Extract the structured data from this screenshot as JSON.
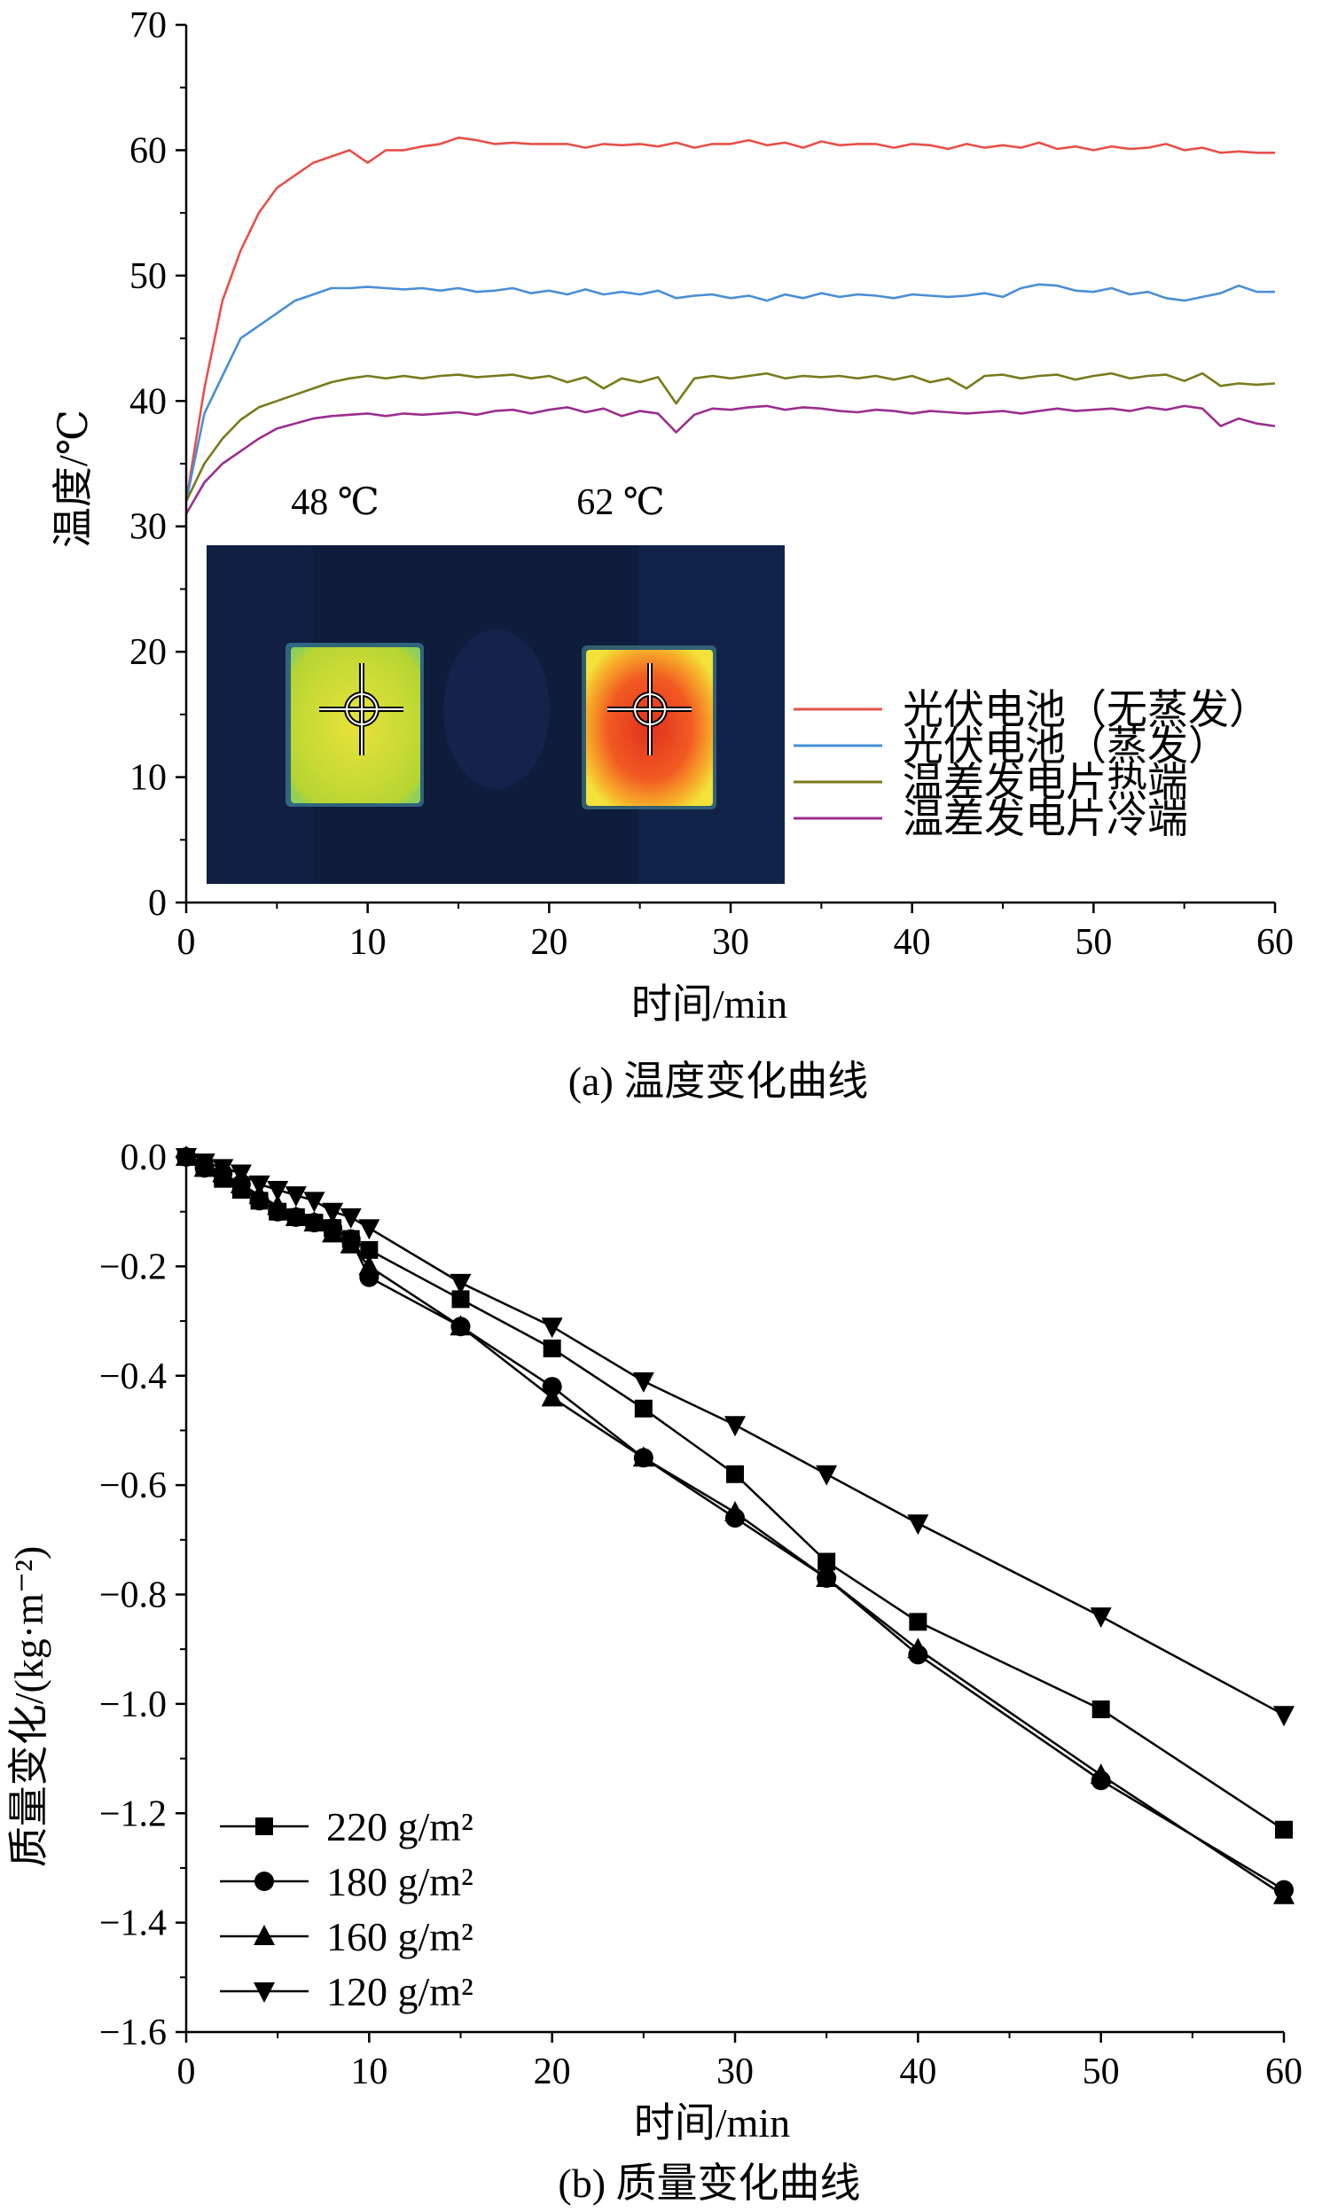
{
  "chart_data": [
    {
      "type": "line",
      "caption": "(a) 温度变化曲线",
      "xlabel": "时间/min",
      "ylabel": "温度/℃",
      "xlim": [
        0,
        60
      ],
      "ylim": [
        0,
        70
      ],
      "xticks": [
        0,
        10,
        20,
        30,
        40,
        50,
        60
      ],
      "yticks": [
        0,
        10,
        20,
        30,
        40,
        50,
        60,
        70
      ],
      "legend_position": "bottom-right",
      "inset": {
        "type": "thermal-image",
        "labels": [
          "48 ℃",
          "62 ℃"
        ]
      },
      "series": [
        {
          "name": "光伏电池（无蒸发）",
          "color": "#e8504a",
          "x": [
            0,
            1,
            2,
            3,
            4,
            5,
            6,
            7,
            8,
            9,
            10,
            11,
            12,
            13,
            14,
            15,
            16,
            17,
            18,
            19,
            20,
            21,
            22,
            23,
            24,
            25,
            26,
            27,
            28,
            29,
            30,
            31,
            32,
            33,
            34,
            35,
            36,
            37,
            38,
            39,
            40,
            41,
            42,
            43,
            44,
            45,
            46,
            47,
            48,
            49,
            50,
            51,
            52,
            53,
            54,
            55,
            56,
            57,
            58,
            59,
            60
          ],
          "y": [
            32,
            41,
            48,
            52,
            55,
            57,
            58,
            59,
            59.5,
            60,
            59,
            60,
            60,
            60.3,
            60.5,
            61,
            60.8,
            60.5,
            60.6,
            60.5,
            60.5,
            60.5,
            60.2,
            60.5,
            60.4,
            60.5,
            60.3,
            60.6,
            60.2,
            60.5,
            60.5,
            60.8,
            60.4,
            60.6,
            60.2,
            60.7,
            60.4,
            60.5,
            60.5,
            60.2,
            60.5,
            60.4,
            60.1,
            60.5,
            60.2,
            60.4,
            60.2,
            60.6,
            60.1,
            60.3,
            60,
            60.3,
            60.1,
            60.2,
            60.5,
            60,
            60.2,
            59.8,
            59.9,
            59.8,
            59.8
          ]
        },
        {
          "name": "光伏电池（蒸发）",
          "color": "#4a8fd6",
          "x": [
            0,
            1,
            2,
            3,
            4,
            5,
            6,
            7,
            8,
            9,
            10,
            11,
            12,
            13,
            14,
            15,
            16,
            17,
            18,
            19,
            20,
            21,
            22,
            23,
            24,
            25,
            26,
            27,
            28,
            29,
            30,
            31,
            32,
            33,
            34,
            35,
            36,
            37,
            38,
            39,
            40,
            41,
            42,
            43,
            44,
            45,
            46,
            47,
            48,
            49,
            50,
            51,
            52,
            53,
            54,
            55,
            56,
            57,
            58,
            59,
            60
          ],
          "y": [
            32,
            39,
            42,
            45,
            46,
            47,
            48,
            48.5,
            49,
            49,
            49.1,
            49,
            48.9,
            49,
            48.8,
            49,
            48.7,
            48.8,
            49,
            48.6,
            48.8,
            48.5,
            48.9,
            48.5,
            48.7,
            48.5,
            48.8,
            48.2,
            48.4,
            48.5,
            48.2,
            48.4,
            48,
            48.5,
            48.2,
            48.6,
            48.3,
            48.5,
            48.4,
            48.2,
            48.5,
            48.4,
            48.3,
            48.4,
            48.6,
            48.3,
            49,
            49.3,
            49.2,
            48.8,
            48.7,
            49,
            48.5,
            48.7,
            48.2,
            48,
            48.3,
            48.6,
            49.2,
            48.7,
            48.7
          ]
        },
        {
          "name": "温差发电片热端",
          "color": "#7a7a1c",
          "x": [
            0,
            1,
            2,
            3,
            4,
            5,
            6,
            7,
            8,
            9,
            10,
            11,
            12,
            13,
            14,
            15,
            16,
            17,
            18,
            19,
            20,
            21,
            22,
            23,
            24,
            25,
            26,
            27,
            28,
            29,
            30,
            31,
            32,
            33,
            34,
            35,
            36,
            37,
            38,
            39,
            40,
            41,
            42,
            43,
            44,
            45,
            46,
            47,
            48,
            49,
            50,
            51,
            52,
            53,
            54,
            55,
            56,
            57,
            58,
            59,
            60
          ],
          "y": [
            32,
            35,
            37,
            38.5,
            39.5,
            40,
            40.5,
            41,
            41.5,
            41.8,
            42,
            41.8,
            42,
            41.8,
            42,
            42.1,
            41.9,
            42,
            42.1,
            41.8,
            42,
            41.5,
            41.9,
            41,
            41.8,
            41.5,
            41.9,
            39.8,
            41.8,
            42,
            41.8,
            42,
            42.2,
            41.8,
            42,
            41.9,
            42,
            41.8,
            42,
            41.7,
            42,
            41.5,
            41.8,
            41,
            42,
            42.1,
            41.8,
            42,
            42.1,
            41.7,
            42,
            42.2,
            41.8,
            42,
            42.1,
            41.6,
            42.2,
            41.2,
            41.4,
            41.3,
            41.4
          ]
        },
        {
          "name": "温差发电片冷端",
          "color": "#9a2e8e",
          "x": [
            0,
            1,
            2,
            3,
            4,
            5,
            6,
            7,
            8,
            9,
            10,
            11,
            12,
            13,
            14,
            15,
            16,
            17,
            18,
            19,
            20,
            21,
            22,
            23,
            24,
            25,
            26,
            27,
            28,
            29,
            30,
            31,
            32,
            33,
            34,
            35,
            36,
            37,
            38,
            39,
            40,
            41,
            42,
            43,
            44,
            45,
            46,
            47,
            48,
            49,
            50,
            51,
            52,
            53,
            54,
            55,
            56,
            57,
            58,
            59,
            60
          ],
          "y": [
            31,
            33.5,
            35,
            36,
            37,
            37.8,
            38.2,
            38.6,
            38.8,
            38.9,
            39,
            38.8,
            39,
            38.9,
            39,
            39.1,
            38.9,
            39.2,
            39.3,
            39,
            39.3,
            39.5,
            39.1,
            39.4,
            38.8,
            39.2,
            39,
            37.5,
            38.9,
            39.4,
            39.3,
            39.5,
            39.6,
            39.3,
            39.5,
            39.4,
            39.2,
            39.1,
            39.3,
            39.2,
            39,
            39.2,
            39.1,
            39,
            39.1,
            39.2,
            39,
            39.2,
            39.4,
            39.2,
            39.3,
            39.4,
            39.2,
            39.5,
            39.3,
            39.6,
            39.4,
            38,
            38.6,
            38.2,
            38
          ]
        }
      ]
    },
    {
      "type": "line",
      "caption": "(b) 质量变化曲线",
      "xlabel": "时间/min",
      "ylabel": "质量变化/(kg·m⁻²)",
      "xlim": [
        0,
        60
      ],
      "ylim": [
        -1.6,
        0.0
      ],
      "xticks": [
        0,
        10,
        20,
        30,
        40,
        50,
        60
      ],
      "yticks": [
        0.0,
        -0.2,
        -0.4,
        -0.6,
        -0.8,
        -1.0,
        -1.2,
        -1.4,
        -1.6
      ],
      "legend_position": "bottom-left",
      "series": [
        {
          "name": "220 g/m²",
          "marker": "square",
          "x": [
            0,
            1,
            2,
            3,
            4,
            5,
            6,
            7,
            8,
            9,
            10,
            15,
            20,
            25,
            30,
            35,
            40,
            50,
            60
          ],
          "y": [
            0,
            -0.02,
            -0.04,
            -0.06,
            -0.08,
            -0.1,
            -0.11,
            -0.12,
            -0.13,
            -0.15,
            -0.17,
            -0.26,
            -0.35,
            -0.46,
            -0.58,
            -0.74,
            -0.85,
            -1.01,
            -1.23
          ]
        },
        {
          "name": "180 g/m²",
          "marker": "circle",
          "x": [
            0,
            1,
            2,
            3,
            4,
            5,
            6,
            7,
            8,
            9,
            10,
            15,
            20,
            25,
            30,
            35,
            40,
            50,
            60
          ],
          "y": [
            0,
            -0.02,
            -0.03,
            -0.05,
            -0.08,
            -0.1,
            -0.11,
            -0.12,
            -0.13,
            -0.15,
            -0.22,
            -0.31,
            -0.42,
            -0.55,
            -0.66,
            -0.77,
            -0.91,
            -1.14,
            -1.34
          ]
        },
        {
          "name": "160 g/m²",
          "marker": "triangle-up",
          "x": [
            0,
            1,
            2,
            3,
            4,
            5,
            6,
            7,
            8,
            9,
            10,
            15,
            20,
            25,
            30,
            35,
            40,
            50,
            60
          ],
          "y": [
            0,
            -0.02,
            -0.03,
            -0.05,
            -0.07,
            -0.09,
            -0.11,
            -0.12,
            -0.14,
            -0.16,
            -0.2,
            -0.31,
            -0.44,
            -0.55,
            -0.65,
            -0.77,
            -0.9,
            -1.13,
            -1.35
          ]
        },
        {
          "name": "120 g/m²",
          "marker": "triangle-down",
          "x": [
            0,
            1,
            2,
            3,
            4,
            5,
            6,
            7,
            8,
            9,
            10,
            15,
            20,
            25,
            30,
            35,
            40,
            50,
            60
          ],
          "y": [
            0,
            -0.01,
            -0.02,
            -0.03,
            -0.05,
            -0.06,
            -0.07,
            -0.08,
            -0.1,
            -0.11,
            -0.13,
            -0.23,
            -0.31,
            -0.41,
            -0.49,
            -0.58,
            -0.67,
            -0.84,
            -1.02
          ]
        }
      ]
    }
  ]
}
